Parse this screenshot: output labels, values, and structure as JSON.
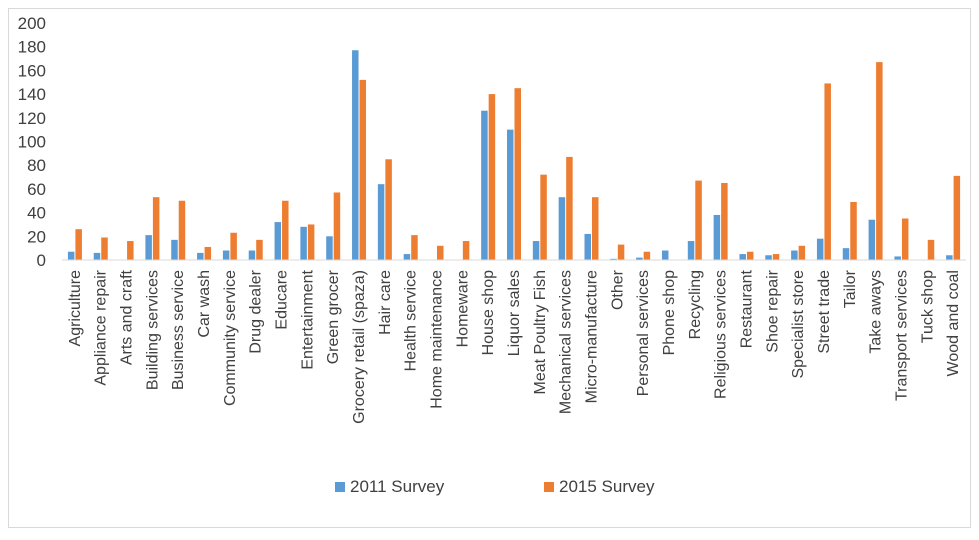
{
  "chart_data": {
    "type": "bar",
    "title": "",
    "xlabel": "",
    "ylabel": "",
    "ylim": [
      0,
      200
    ],
    "yticks": [
      0,
      20,
      40,
      60,
      80,
      100,
      120,
      140,
      160,
      180,
      200
    ],
    "grid": false,
    "legend_position": "bottom",
    "categories": [
      "Agriculture",
      "Appliance repair",
      "Arts and craft",
      "Building services",
      "Business service",
      "Car wash",
      "Community service",
      "Drug dealer",
      "Educare",
      "Entertainment",
      "Green grocer",
      "Grocery retail (spaza)",
      "Hair care",
      "Health service",
      "Home maintenance",
      "Homeware",
      "House shop",
      "Liquor sales",
      "Meat Poultry Fish",
      "Mechanical services",
      "Micro-manufacture",
      "Other",
      "Personal services",
      "Phone shop",
      "Recycling",
      "Religious services",
      "Restaurant",
      "Shoe repair",
      "Specialist store",
      "Street trade",
      "Tailor",
      "Take aways",
      "Transport services",
      "Tuck shop",
      "Wood and coal"
    ],
    "series": [
      {
        "name": "2011 Survey",
        "color": "#5b9bd5",
        "values": [
          7,
          6,
          0,
          21,
          17,
          6,
          8,
          8,
          32,
          28,
          20,
          177,
          64,
          5,
          0,
          0,
          126,
          110,
          16,
          53,
          22,
          1,
          2,
          8,
          16,
          38,
          5,
          4,
          8,
          18,
          10,
          34,
          3,
          0,
          4
        ]
      },
      {
        "name": "2015 Survey",
        "color": "#ed7d31",
        "values": [
          26,
          19,
          16,
          53,
          50,
          11,
          23,
          17,
          50,
          30,
          57,
          152,
          85,
          21,
          12,
          16,
          140,
          145,
          72,
          87,
          53,
          13,
          7,
          0,
          67,
          65,
          7,
          5,
          12,
          149,
          49,
          167,
          35,
          17,
          71
        ]
      }
    ]
  }
}
